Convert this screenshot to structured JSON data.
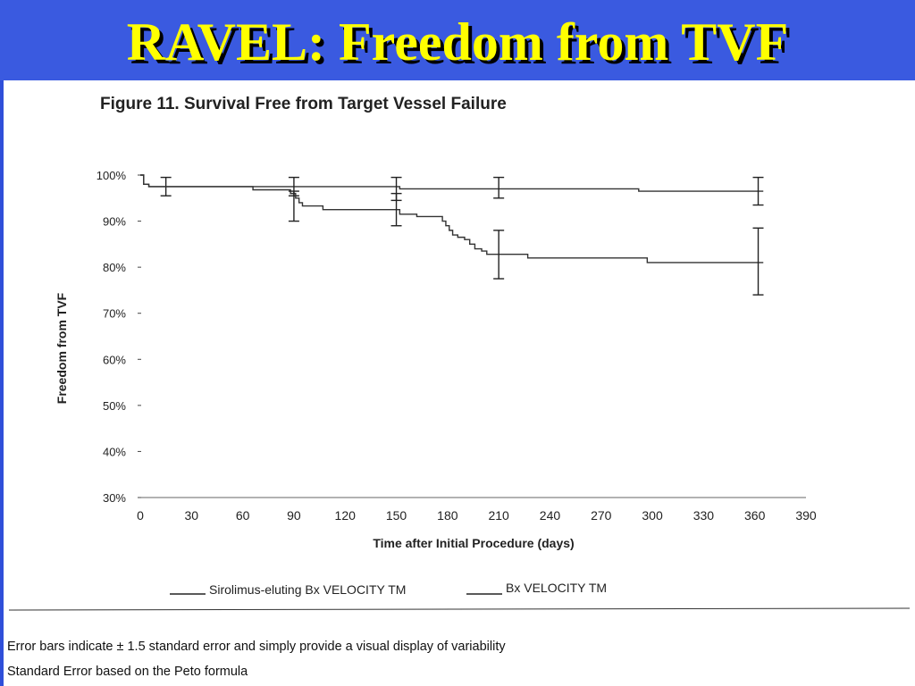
{
  "slide": {
    "title": "RAVEL: Freedom from TVF"
  },
  "figure": {
    "caption": "Figure 11. Survival Free from Target Vessel Failure"
  },
  "footnotes": [
    "Error bars indicate ± 1.5 standard error and simply provide a visual display of variability",
    "Standard Error based on the Peto formula"
  ],
  "colors": {
    "title_text": "#ffff00",
    "background": "#2f4fd9"
  },
  "chart_data": {
    "type": "line",
    "title": "Figure 11. Survival Free from Target Vessel Failure",
    "xlabel": "Time after Initial Procedure (days)",
    "ylabel": "Freedom from TVF",
    "xlim": [
      0,
      390
    ],
    "ylim": [
      30,
      100
    ],
    "x_ticks": [
      0,
      30,
      60,
      90,
      120,
      150,
      180,
      210,
      240,
      270,
      300,
      330,
      360,
      390
    ],
    "x_tick_labels": [
      "0",
      "30",
      "60",
      "90",
      "120",
      "150",
      "180",
      "210",
      "240",
      "270",
      "300",
      "330",
      "360",
      "390"
    ],
    "y_ticks": [
      30,
      40,
      50,
      60,
      70,
      80,
      90,
      100
    ],
    "y_tick_labels": [
      "30%",
      "40%",
      "50%",
      "60%",
      "70%",
      "80%",
      "90%",
      "100%"
    ],
    "grid": false,
    "legend_position": "bottom",
    "series": [
      {
        "name": "Sirolimus-eluting Bx VELOCITY TM",
        "step": true,
        "points": [
          [
            0,
            100
          ],
          [
            2,
            98
          ],
          [
            5,
            97.5
          ],
          [
            90,
            97.5
          ],
          [
            148,
            97.5
          ],
          [
            152,
            97
          ],
          [
            290,
            97
          ],
          [
            292,
            96.5
          ],
          [
            365,
            96.5
          ]
        ],
        "error_bars": [
          {
            "x": 15,
            "y": 97.5,
            "low": 95.5,
            "high": 99.5
          },
          {
            "x": 90,
            "y": 97.5,
            "low": 95.5,
            "high": 99.5
          },
          {
            "x": 150,
            "y": 97,
            "low": 94.5,
            "high": 99.5
          },
          {
            "x": 210,
            "y": 97,
            "low": 95,
            "high": 99.5
          },
          {
            "x": 362,
            "y": 96.5,
            "low": 93.5,
            "high": 99.5
          }
        ]
      },
      {
        "name": "Bx VELOCITY TM",
        "step": true,
        "points": [
          [
            0,
            100
          ],
          [
            2,
            98
          ],
          [
            5,
            97.5
          ],
          [
            65,
            97.5
          ],
          [
            66,
            96.8
          ],
          [
            85,
            96.8
          ],
          [
            88,
            96
          ],
          [
            91,
            95
          ],
          [
            93,
            94
          ],
          [
            95,
            93.3
          ],
          [
            105,
            93.3
          ],
          [
            107,
            92.5
          ],
          [
            150,
            92.5
          ],
          [
            152,
            91.5
          ],
          [
            160,
            91.5
          ],
          [
            162,
            91
          ],
          [
            175,
            91
          ],
          [
            177,
            90
          ],
          [
            179,
            89
          ],
          [
            181,
            88
          ],
          [
            183,
            87
          ],
          [
            186,
            86.5
          ],
          [
            190,
            86
          ],
          [
            193,
            85
          ],
          [
            196,
            84
          ],
          [
            200,
            83.5
          ],
          [
            203,
            82.8
          ],
          [
            225,
            82.8
          ],
          [
            227,
            82
          ],
          [
            295,
            82
          ],
          [
            297,
            81
          ],
          [
            365,
            81
          ]
        ],
        "error_bars": [
          {
            "x": 90,
            "y": 93.3,
            "low": 90,
            "high": 96.5
          },
          {
            "x": 150,
            "y": 92.5,
            "low": 89,
            "high": 96
          },
          {
            "x": 210,
            "y": 82.8,
            "low": 77.5,
            "high": 88
          },
          {
            "x": 362,
            "y": 81,
            "low": 74,
            "high": 88.5
          }
        ]
      }
    ]
  }
}
